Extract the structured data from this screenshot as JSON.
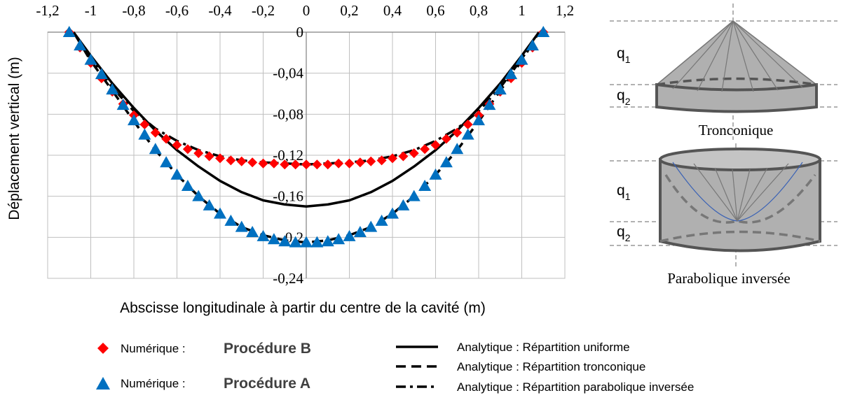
{
  "chart_data": {
    "type": "line",
    "xlabel": "Abscisse longitudinale  à partir du centre de la cavité (m)",
    "ylabel": "Déplacement vertical (m)",
    "xlim": [
      -1.2,
      1.2
    ],
    "ylim": [
      -0.24,
      0
    ],
    "x_ticks": [
      -1.2,
      -1,
      -0.8,
      -0.6,
      -0.4,
      -0.2,
      0,
      0.2,
      0.4,
      0.6,
      0.8,
      1,
      1.2
    ],
    "x_tick_labels": [
      "-1,2",
      "-1",
      "-0,8",
      "-0,6",
      "-0,4",
      "-0,2",
      "0",
      "0,2",
      "0,4",
      "0,6",
      "0,8",
      "1",
      "1,2"
    ],
    "y_ticks": [
      0,
      -0.04,
      -0.08,
      -0.12,
      -0.16,
      -0.2,
      -0.24
    ],
    "y_tick_labels": [
      "0",
      "-0,04",
      "-0,08",
      "-0,12",
      "-0,16",
      "-0,2",
      "-0,24"
    ],
    "grid": true,
    "legend_position": "bottom",
    "series": [
      {
        "name": "Analytique : Répartition uniforme",
        "style": "solid",
        "color": "#000000",
        "x": [
          -1.08,
          -1.0,
          -0.9,
          -0.8,
          -0.7,
          -0.6,
          -0.5,
          -0.4,
          -0.3,
          -0.2,
          -0.1,
          0,
          0.1,
          0.2,
          0.3,
          0.4,
          0.5,
          0.6,
          0.7,
          0.8,
          0.9,
          1.0,
          1.08
        ],
        "y": [
          0,
          -0.023,
          -0.05,
          -0.074,
          -0.096,
          -0.115,
          -0.131,
          -0.145,
          -0.156,
          -0.164,
          -0.168,
          -0.17,
          -0.168,
          -0.164,
          -0.156,
          -0.145,
          -0.131,
          -0.115,
          -0.096,
          -0.074,
          -0.05,
          -0.023,
          0
        ]
      },
      {
        "name": "Analytique : Répartition tronconique",
        "style": "dashed",
        "color": "#000000",
        "x": [
          -1.08,
          -1.0,
          -0.9,
          -0.8,
          -0.7,
          -0.6,
          -0.5,
          -0.4,
          -0.3,
          -0.2,
          -0.1,
          0,
          0.1,
          0.2,
          0.3,
          0.4,
          0.5,
          0.6,
          0.7,
          0.8,
          0.9,
          1.0,
          1.08
        ],
        "y": [
          0,
          -0.028,
          -0.057,
          -0.087,
          -0.115,
          -0.139,
          -0.16,
          -0.177,
          -0.19,
          -0.198,
          -0.203,
          -0.205,
          -0.203,
          -0.198,
          -0.19,
          -0.177,
          -0.16,
          -0.139,
          -0.115,
          -0.087,
          -0.057,
          -0.028,
          0
        ]
      },
      {
        "name": "Analytique : Répartition parabolique  inversée",
        "style": "dashdot",
        "color": "#000000",
        "x": [
          -1.08,
          -1.0,
          -0.9,
          -0.8,
          -0.7,
          -0.6,
          -0.5,
          -0.4,
          -0.3,
          -0.2,
          -0.1,
          0,
          0.1,
          0.2,
          0.3,
          0.4,
          0.5,
          0.6,
          0.7,
          0.8,
          0.9,
          1.0,
          1.08
        ],
        "y": [
          0,
          -0.026,
          -0.054,
          -0.077,
          -0.094,
          -0.106,
          -0.115,
          -0.121,
          -0.125,
          -0.127,
          -0.128,
          -0.129,
          -0.128,
          -0.127,
          -0.125,
          -0.121,
          -0.115,
          -0.106,
          -0.094,
          -0.077,
          -0.054,
          -0.026,
          0
        ]
      },
      {
        "name": "Numérique : Procédure B",
        "marker": "diamond",
        "color": "#ff0000",
        "x": [
          -1.1,
          -1.05,
          -1.0,
          -0.95,
          -0.9,
          -0.85,
          -0.8,
          -0.75,
          -0.7,
          -0.65,
          -0.6,
          -0.55,
          -0.5,
          -0.45,
          -0.4,
          -0.35,
          -0.3,
          -0.25,
          -0.2,
          -0.15,
          -0.1,
          -0.05,
          0,
          0.05,
          0.1,
          0.15,
          0.2,
          0.25,
          0.3,
          0.35,
          0.4,
          0.45,
          0.5,
          0.55,
          0.6,
          0.65,
          0.7,
          0.75,
          0.8,
          0.85,
          0.9,
          0.95,
          1.0,
          1.05,
          1.1
        ],
        "y": [
          0,
          -0.015,
          -0.03,
          -0.045,
          -0.058,
          -0.07,
          -0.081,
          -0.09,
          -0.098,
          -0.104,
          -0.11,
          -0.114,
          -0.118,
          -0.121,
          -0.123,
          -0.125,
          -0.126,
          -0.127,
          -0.128,
          -0.128,
          -0.129,
          -0.129,
          -0.129,
          -0.129,
          -0.129,
          -0.128,
          -0.128,
          -0.127,
          -0.126,
          -0.125,
          -0.123,
          -0.121,
          -0.118,
          -0.114,
          -0.11,
          -0.104,
          -0.098,
          -0.09,
          -0.081,
          -0.07,
          -0.058,
          -0.045,
          -0.03,
          -0.015,
          0
        ]
      },
      {
        "name": "Numérique : Procédure A",
        "marker": "triangle",
        "color": "#0070c0",
        "x": [
          -1.1,
          -1.05,
          -1.0,
          -0.95,
          -0.9,
          -0.85,
          -0.8,
          -0.75,
          -0.7,
          -0.65,
          -0.6,
          -0.55,
          -0.5,
          -0.45,
          -0.4,
          -0.35,
          -0.3,
          -0.25,
          -0.2,
          -0.15,
          -0.1,
          -0.05,
          0,
          0.05,
          0.1,
          0.15,
          0.2,
          0.25,
          0.3,
          0.35,
          0.4,
          0.45,
          0.5,
          0.55,
          0.6,
          0.65,
          0.7,
          0.75,
          0.8,
          0.85,
          0.9,
          0.95,
          1.0,
          1.05,
          1.1
        ],
        "y": [
          0,
          -0.013,
          -0.027,
          -0.041,
          -0.056,
          -0.071,
          -0.086,
          -0.1,
          -0.114,
          -0.127,
          -0.139,
          -0.15,
          -0.16,
          -0.169,
          -0.177,
          -0.184,
          -0.19,
          -0.195,
          -0.199,
          -0.202,
          -0.204,
          -0.205,
          -0.205,
          -0.205,
          -0.204,
          -0.202,
          -0.199,
          -0.195,
          -0.19,
          -0.184,
          -0.177,
          -0.169,
          -0.16,
          -0.15,
          -0.139,
          -0.127,
          -0.114,
          -0.1,
          -0.086,
          -0.071,
          -0.056,
          -0.041,
          -0.027,
          -0.013,
          0
        ]
      }
    ]
  },
  "legend": {
    "numerique_prefix": "Numérique : ",
    "procedure_b": "Procédure B",
    "procedure_a": "Procédure A",
    "uniforme": "Analytique  : Répartition uniforme",
    "tronconique": "Analytique  : Répartition tronconique",
    "parabolique": "Analytique  : Répartition parabolique  inversée"
  },
  "diagrams": {
    "tronconique_label": "Tronconique",
    "parabolique_label": "Parabolique inversée",
    "q1": "q",
    "q1_sub": "1",
    "q2": "q",
    "q2_sub": "2"
  }
}
